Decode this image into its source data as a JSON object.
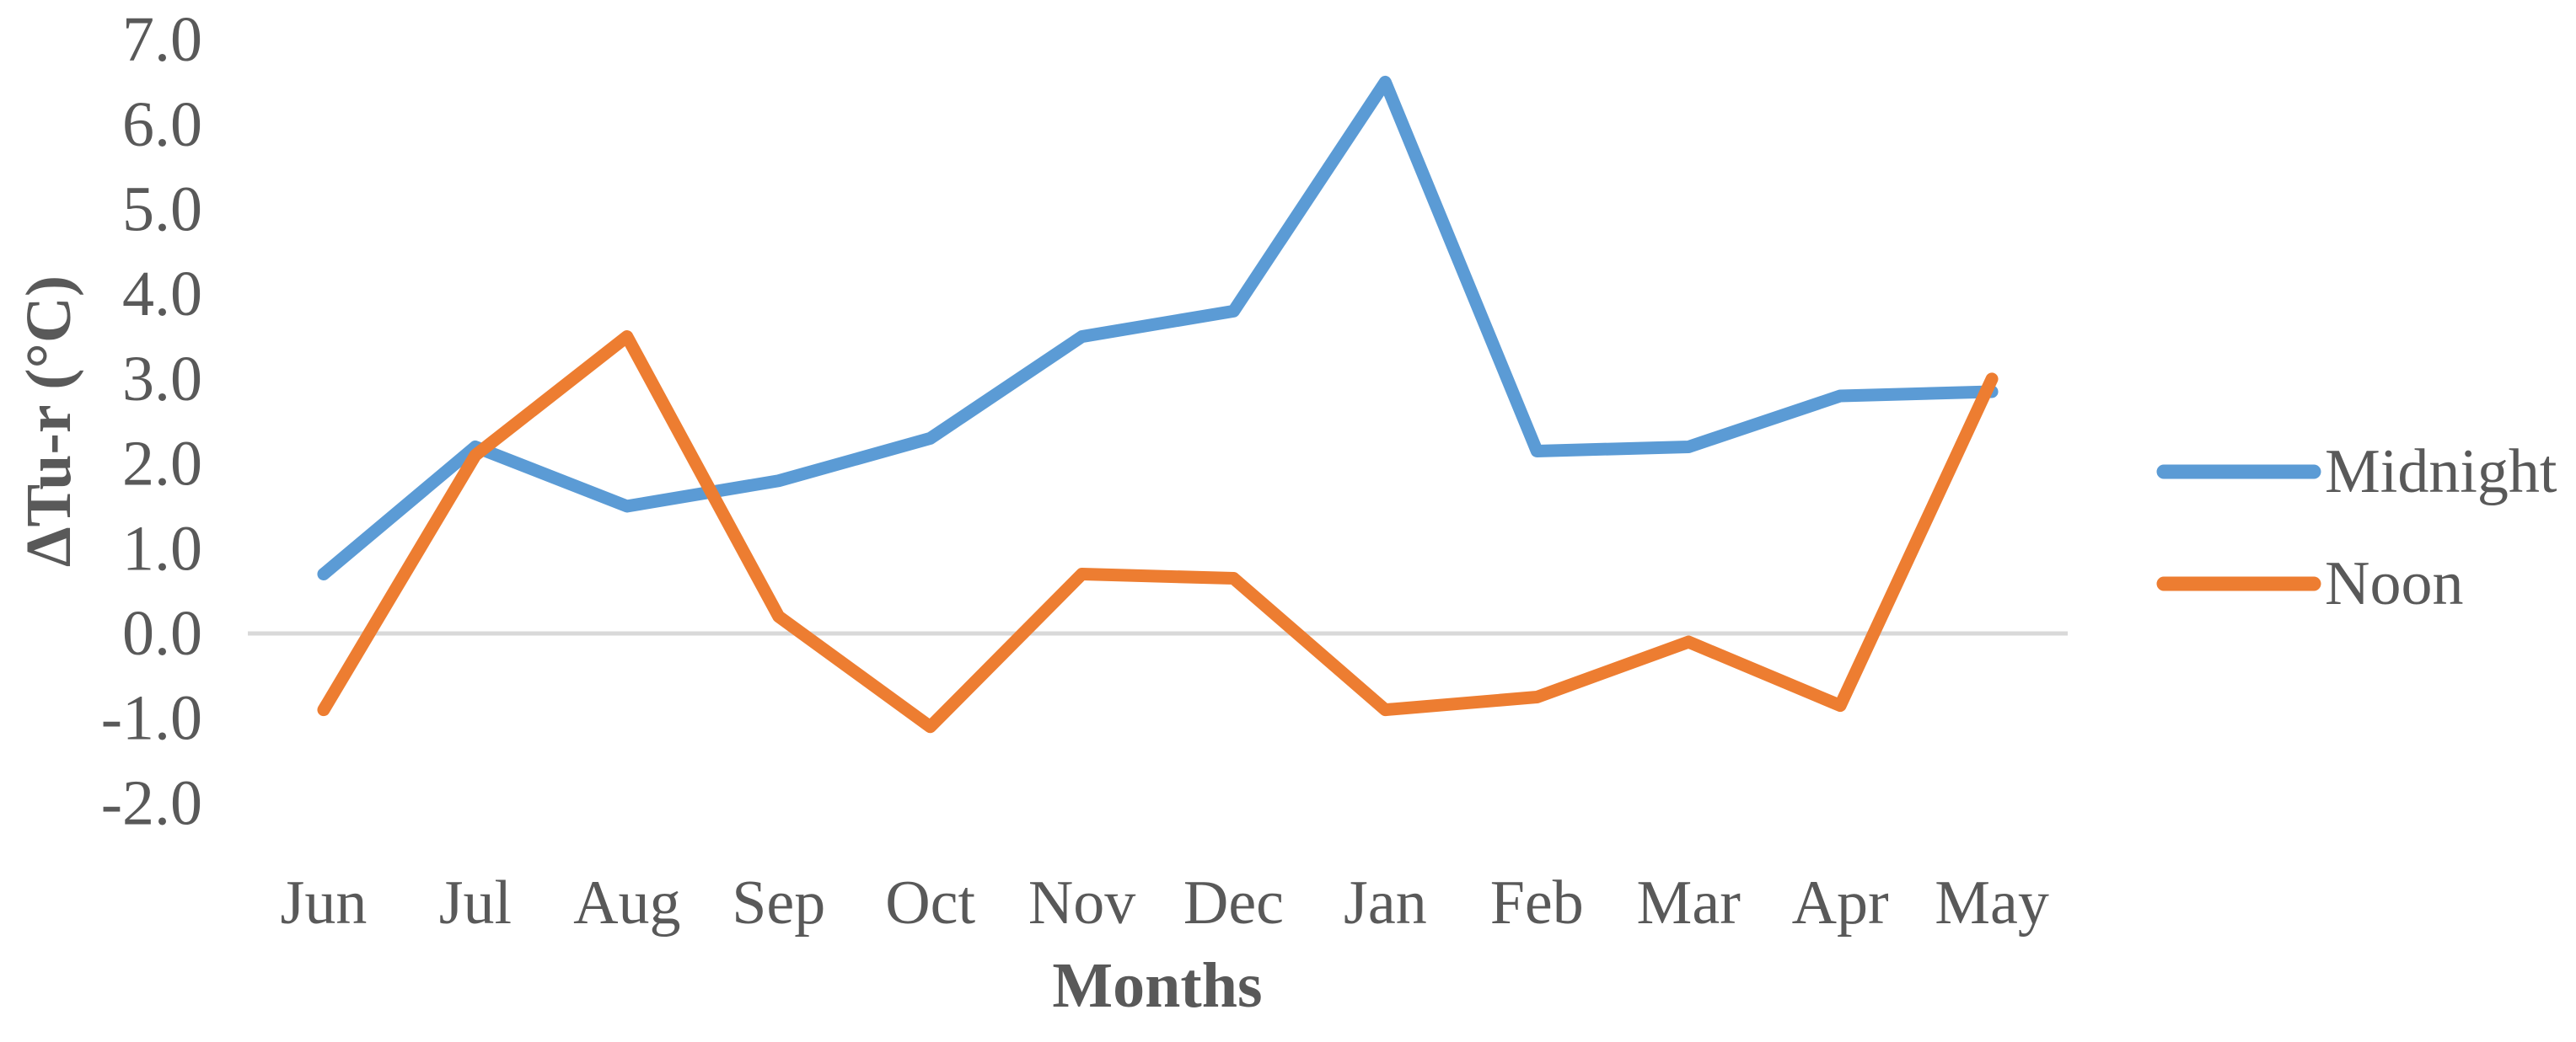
{
  "chart_data": {
    "type": "line",
    "title": "",
    "xlabel": "Months",
    "ylabel": "ΔTu-r (°C)",
    "categories": [
      "Jun",
      "Jul",
      "Aug",
      "Sep",
      "Oct",
      "Nov",
      "Dec",
      "Jan",
      "Feb",
      "Mar",
      "Apr",
      "May"
    ],
    "series": [
      {
        "name": "Midnight",
        "color": "#5B9BD5",
        "values": [
          0.7,
          2.2,
          1.5,
          1.8,
          2.3,
          3.5,
          3.8,
          6.5,
          2.15,
          2.2,
          2.8,
          2.85
        ]
      },
      {
        "name": "Noon",
        "color": "#ED7D31",
        "values": [
          -0.9,
          2.1,
          3.5,
          0.2,
          -1.1,
          0.7,
          0.65,
          -0.9,
          -0.75,
          -0.1,
          -0.85,
          3.0
        ]
      }
    ],
    "ylim": [
      -2.0,
      7.0
    ],
    "ytick_step": 1.0,
    "ytick_labels": [
      "7.0",
      "6.0",
      "5.0",
      "4.0",
      "3.0",
      "2.0",
      "1.0",
      "0.0",
      "-1.0",
      "-2.0"
    ],
    "gridlines_at": [
      0.0
    ],
    "grid": "zero-line-only",
    "legend_position": "right"
  },
  "colors": {
    "midnight_line": "#5B9BD5",
    "noon_line": "#ED7D31",
    "zero_gridline": "#D9D9D9",
    "axis_text": "#595959",
    "background": "#FFFFFF"
  }
}
